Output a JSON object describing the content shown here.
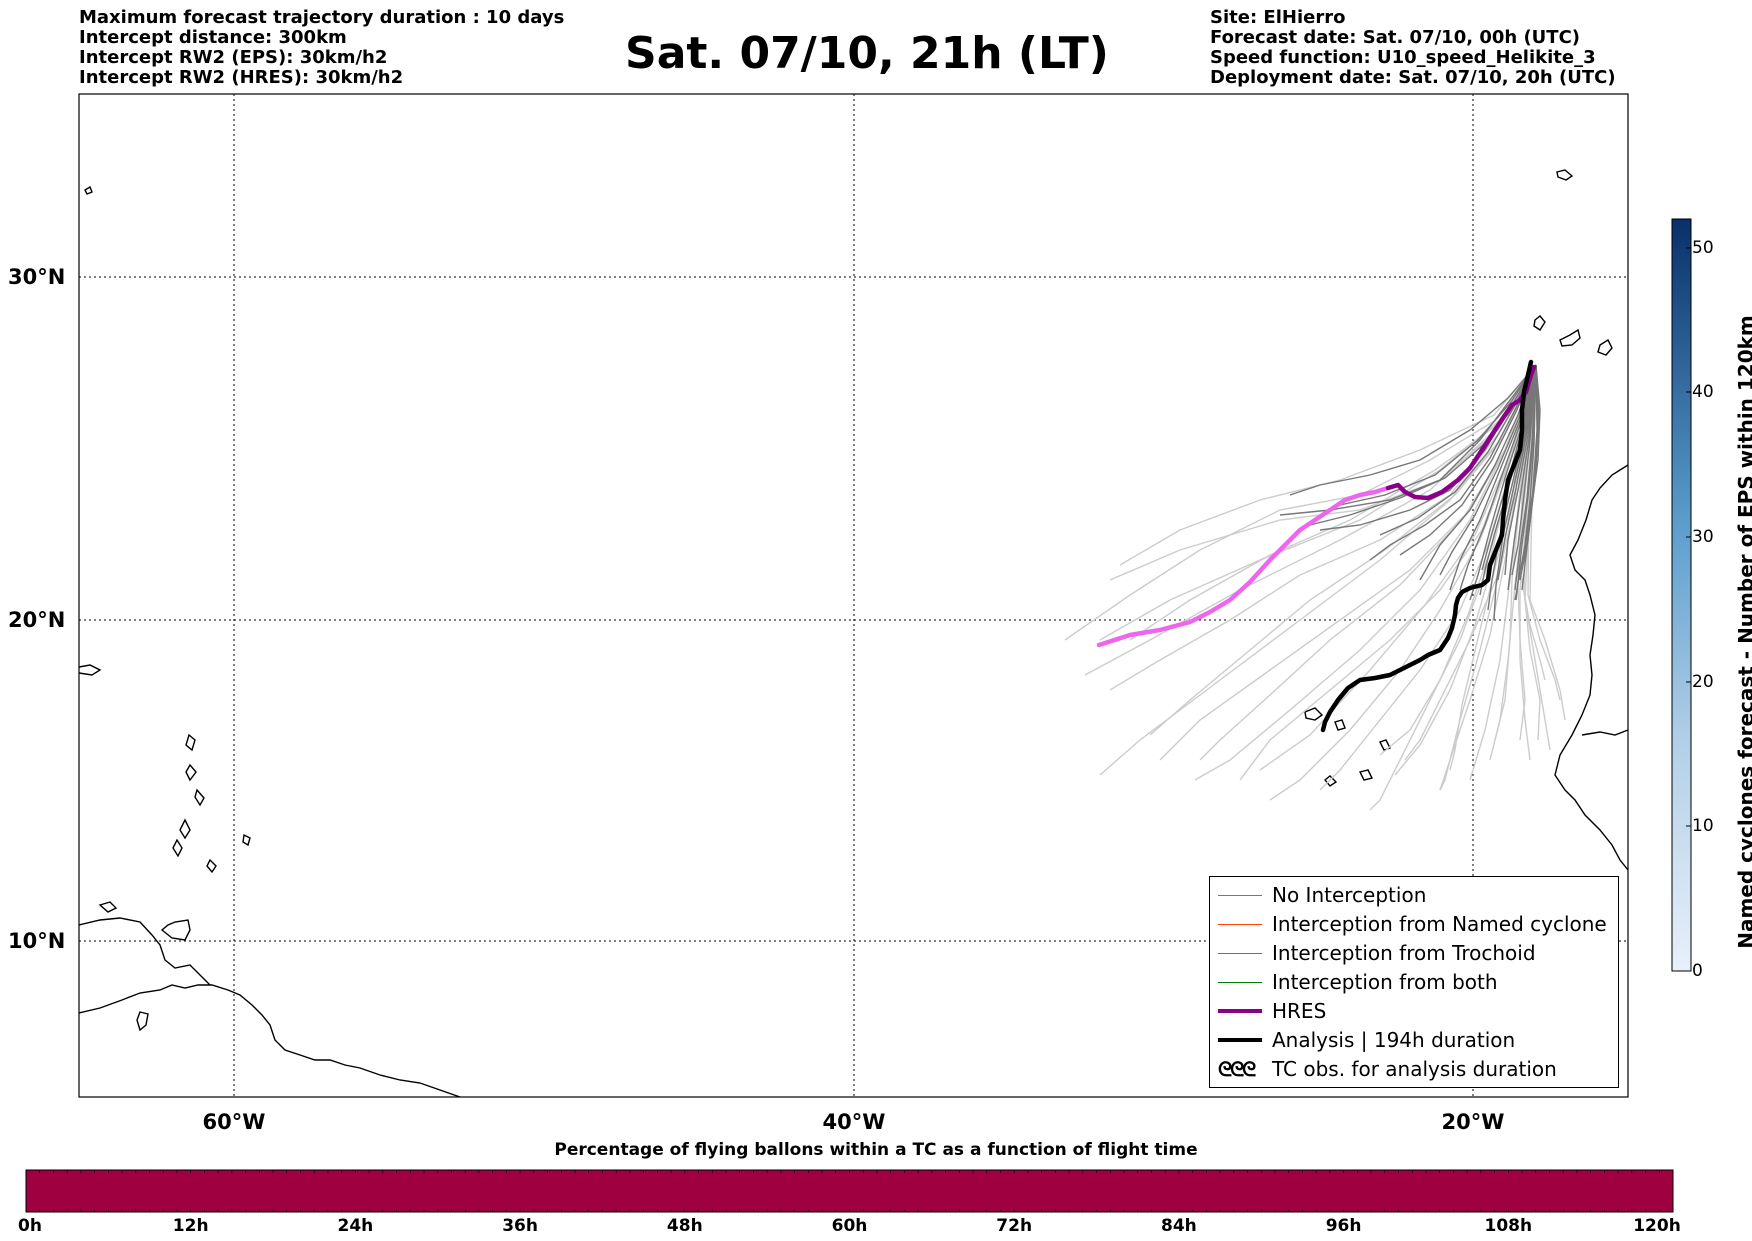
{
  "header_left": [
    "Maximum forecast trajectory duration : 10 days",
    "Intercept distance: 300km",
    "Intercept RW2 (EPS):  30km/h2",
    "Intercept RW2 (HRES): 30km/h2"
  ],
  "title": "Sat. 07/10, 21h (LT)",
  "header_right": [
    "Site: ElHierro",
    "Forecast date: Sat. 07/10, 00h (UTC)",
    "Speed function: U10_speed_Helikite_3",
    "Deployment date: Sat. 07/10, 20h (UTC)"
  ],
  "map": {
    "lon_range": [
      -65,
      -15
    ],
    "lat_range": [
      5.4,
      34.7
    ],
    "lon_labels": [
      "60°W",
      "40°W",
      "20°W"
    ],
    "lat_labels": [
      "30°N",
      "20°N",
      "10°N"
    ],
    "colors": {
      "eps_light": "#cccccc",
      "eps_dark": "#777777",
      "hres_pink": "#ee66ee",
      "hres_purple": "#8b008b",
      "analysis": "#000000"
    }
  },
  "legend": {
    "items": [
      {
        "label": "No Interception",
        "color": "#777777",
        "width": 1.2
      },
      {
        "label": "Interception from Named cyclone",
        "color": "#ff4500",
        "width": 1.2
      },
      {
        "label": "Interception from Trochoid",
        "color": "#808000",
        "width": 1.2
      },
      {
        "label": "Interception from both",
        "color": "#008000",
        "width": 1.2
      },
      {
        "label": "HRES",
        "color": "#8b008b",
        "width": 4
      },
      {
        "label": "Analysis | 194h duration",
        "color": "#000000",
        "width": 4
      },
      {
        "label": "TC obs. for analysis duration",
        "color": "#000000",
        "width": 0,
        "icon": "cyclone-symbols-icon",
        "glyph": "ᘓᘓᘓ"
      }
    ]
  },
  "bottom_colorbar": {
    "title": "Percentage of flying ballons within a TC as a function of flight time",
    "color": "#9e0040",
    "ticks": [
      "0h",
      "12h",
      "24h",
      "36h",
      "48h",
      "60h",
      "72h",
      "84h",
      "96h",
      "108h",
      "120h"
    ]
  },
  "side_colorbar": {
    "label": "Named cyclones forecast - Number of EPS within 120km",
    "ticks": [
      "0",
      "10",
      "20",
      "30",
      "40",
      "50"
    ],
    "max": 52,
    "color_low": "#e8f0fa",
    "color_high": "#08306b"
  }
}
